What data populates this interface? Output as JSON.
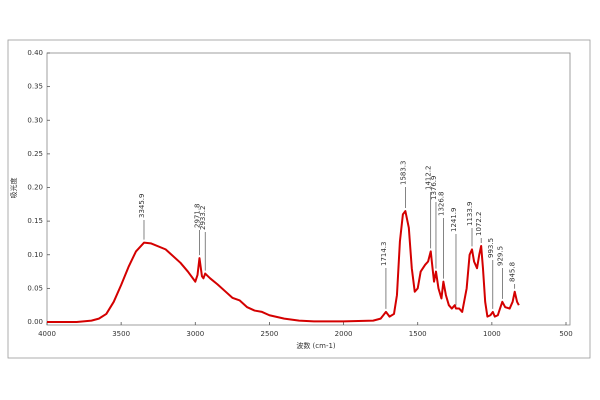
{
  "chart_data": {
    "type": "line",
    "xlabel": "波数 (cm-1)",
    "ylabel": "吸光度",
    "x": [
      4000,
      3800,
      3700,
      3650,
      3600,
      3550,
      3500,
      3450,
      3400,
      3345.9,
      3300,
      3200,
      3100,
      3050,
      3000,
      2985,
      2971.8,
      2955,
      2945,
      2933.2,
      2900,
      2850,
      2800,
      2750,
      2700,
      2650,
      2600,
      2550,
      2500,
      2400,
      2300,
      2200,
      2000,
      1800,
      1750,
      1714.3,
      1690,
      1660,
      1640,
      1620,
      1600,
      1583.3,
      1560,
      1540,
      1520,
      1500,
      1480,
      1450,
      1430,
      1412.2,
      1400,
      1390,
      1376.9,
      1360,
      1340,
      1326.8,
      1310,
      1290,
      1270,
      1250,
      1241.9,
      1220,
      1200,
      1170,
      1150,
      1133.9,
      1120,
      1100,
      1085,
      1072.2,
      1060,
      1045,
      1030,
      1010,
      993.5,
      980,
      960,
      945,
      929.5,
      910,
      880,
      860,
      845.8,
      830,
      818
    ],
    "values": [
      0.0,
      0.0,
      0.002,
      0.005,
      0.012,
      0.03,
      0.055,
      0.082,
      0.105,
      0.118,
      0.117,
      0.108,
      0.088,
      0.075,
      0.06,
      0.07,
      0.095,
      0.068,
      0.065,
      0.072,
      0.065,
      0.056,
      0.046,
      0.036,
      0.032,
      0.022,
      0.017,
      0.015,
      0.01,
      0.005,
      0.002,
      0.001,
      0.001,
      0.002,
      0.005,
      0.015,
      0.008,
      0.012,
      0.04,
      0.12,
      0.16,
      0.165,
      0.14,
      0.08,
      0.045,
      0.05,
      0.075,
      0.085,
      0.09,
      0.105,
      0.08,
      0.06,
      0.075,
      0.05,
      0.035,
      0.06,
      0.04,
      0.025,
      0.02,
      0.025,
      0.02,
      0.02,
      0.015,
      0.05,
      0.1,
      0.108,
      0.09,
      0.08,
      0.1,
      0.113,
      0.08,
      0.03,
      0.008,
      0.01,
      0.015,
      0.008,
      0.01,
      0.02,
      0.03,
      0.022,
      0.02,
      0.03,
      0.045,
      0.03,
      0.025
    ],
    "color": "#d40000",
    "peak_labels": [
      3345.9,
      2971.8,
      2933.2,
      1714.3,
      1583.3,
      1412.2,
      1376.9,
      1326.8,
      1241.9,
      1133.9,
      1072.2,
      993.5,
      929.5,
      845.8
    ],
    "xlim": [
      4000,
      500
    ],
    "xticks": [
      4000,
      3500,
      3000,
      2500,
      2000,
      1500,
      1000,
      500
    ],
    "ylim": [
      0,
      0.4
    ],
    "yticks": [
      {
        "value": 0,
        "label": "0.00"
      },
      {
        "value": 0.05,
        "label": "0.05"
      },
      {
        "value": 0.1,
        "label": "0.10"
      },
      {
        "value": 0.15,
        "label": "0.15"
      },
      {
        "value": 0.2,
        "label": "0.20"
      },
      {
        "value": 0.25,
        "label": "0.25"
      },
      {
        "value": 0.3,
        "label": "0.30"
      },
      {
        "value": 0.35,
        "label": "0.35"
      },
      {
        "value": 0.4,
        "label": "0.40"
      }
    ]
  }
}
